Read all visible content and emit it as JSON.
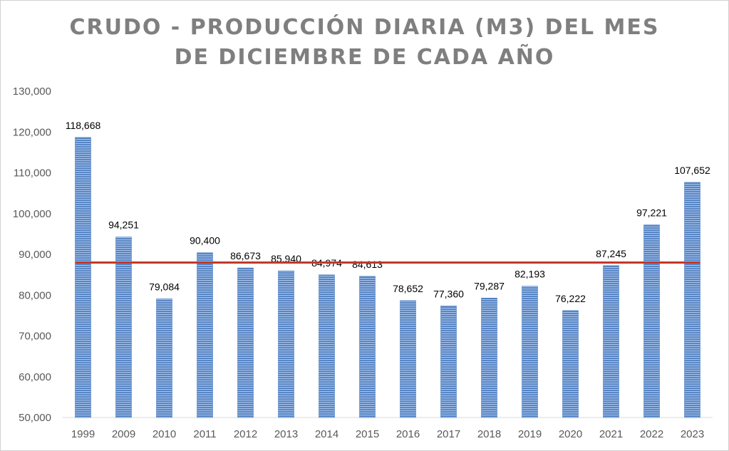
{
  "chart_data": {
    "type": "bar",
    "title": [
      "CRUDO - PRODUCCIÓN DIARIA (M3) DEL MES",
      "DE DICIEMBRE DE CADA AÑO"
    ],
    "categories": [
      "1999",
      "2009",
      "2010",
      "2011",
      "2012",
      "2013",
      "2014",
      "2015",
      "2016",
      "2017",
      "2018",
      "2019",
      "2020",
      "2021",
      "2022",
      "2023"
    ],
    "values": [
      118668,
      94251,
      79084,
      90400,
      86673,
      85940,
      84974,
      84613,
      78652,
      77360,
      79287,
      82193,
      76222,
      87245,
      97221,
      107652
    ],
    "value_labels": [
      "118,668",
      "94,251",
      "79,084",
      "90,400",
      "86,673",
      "85,940",
      "84,974",
      "84,613",
      "78,652",
      "77,360",
      "79,287",
      "82,193",
      "76,222",
      "87,245",
      "97,221",
      "107,652"
    ],
    "reference_line": {
      "value": 88000,
      "color": "#c0392b"
    },
    "ylim": [
      50000,
      130000
    ],
    "yticks": [
      50000,
      60000,
      70000,
      80000,
      90000,
      100000,
      110000,
      120000,
      130000
    ],
    "ytick_labels": [
      "50,000",
      "60,000",
      "70,000",
      "80,000",
      "90,000",
      "100,000",
      "110,000",
      "120,000",
      "130,000"
    ],
    "xlabel": "",
    "ylabel": "",
    "grid": false,
    "legend": "none",
    "bar_color": "#4f7fc0",
    "bar_highlight_color": "#a9c4ea",
    "title_color": "#7f7f7f"
  }
}
